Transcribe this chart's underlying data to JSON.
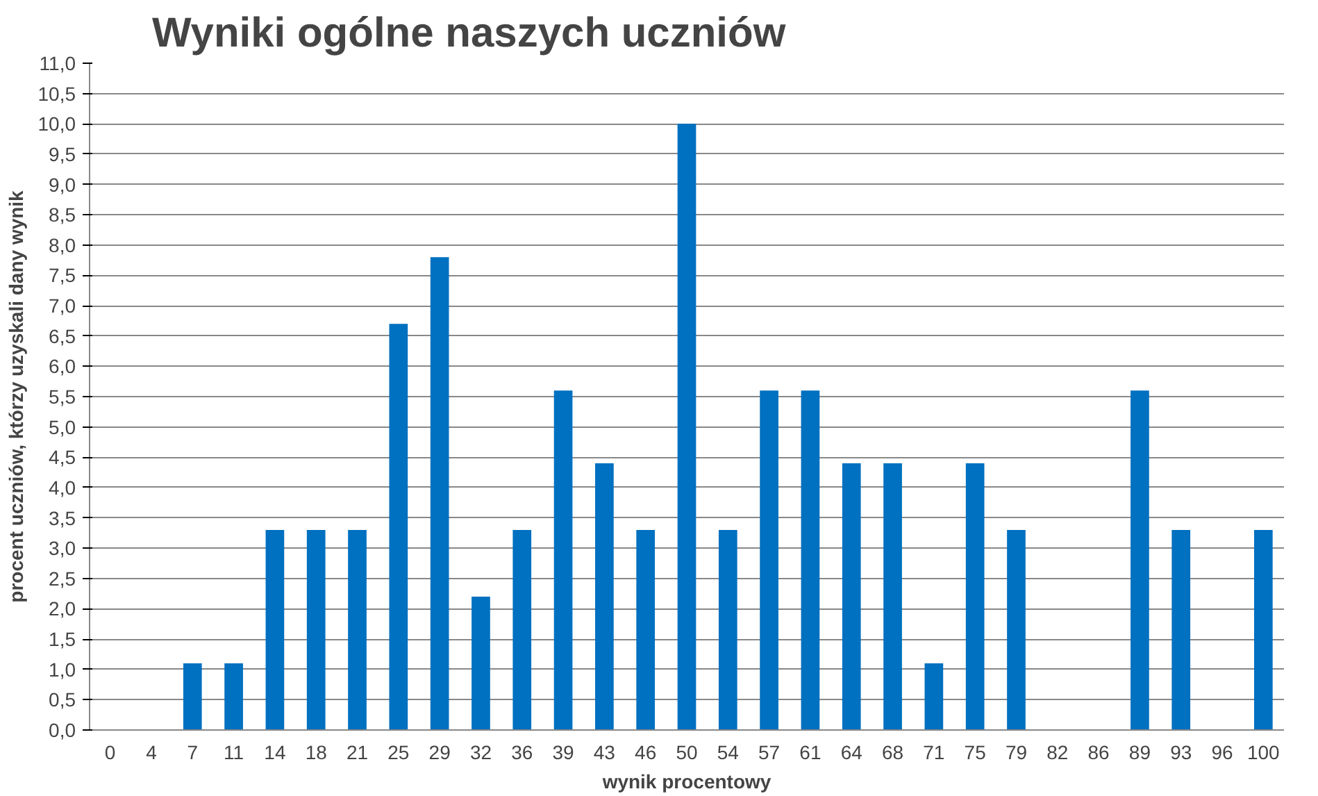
{
  "chart_data": {
    "type": "bar",
    "title": "Wyniki ogólne naszych uczniów",
    "xlabel": "wynik procentowy",
    "ylabel": "procent uczniów, którzy uzyskali dany wynik",
    "categories": [
      "0",
      "4",
      "7",
      "11",
      "14",
      "18",
      "21",
      "25",
      "29",
      "32",
      "36",
      "39",
      "43",
      "46",
      "50",
      "54",
      "57",
      "61",
      "64",
      "68",
      "71",
      "75",
      "79",
      "82",
      "86",
      "89",
      "93",
      "96",
      "100"
    ],
    "values": [
      0,
      0,
      1.1,
      1.1,
      3.3,
      3.3,
      3.3,
      6.7,
      7.8,
      2.2,
      3.3,
      5.6,
      4.4,
      3.3,
      10.0,
      3.3,
      5.6,
      5.6,
      4.4,
      4.4,
      1.1,
      4.4,
      3.3,
      0,
      0,
      5.6,
      3.3,
      0,
      3.3
    ],
    "color": "#0070c0",
    "ylim": [
      0,
      11
    ],
    "yticks": [
      {
        "value": 0,
        "label": "0,0"
      },
      {
        "value": 0.5,
        "label": "0,5"
      },
      {
        "value": 1,
        "label": "1,0"
      },
      {
        "value": 1.5,
        "label": "1,5"
      },
      {
        "value": 2,
        "label": "2,0"
      },
      {
        "value": 2.5,
        "label": "2,5"
      },
      {
        "value": 3,
        "label": "3,0"
      },
      {
        "value": 3.5,
        "label": "3,5"
      },
      {
        "value": 4,
        "label": "4,0"
      },
      {
        "value": 4.5,
        "label": "4,5"
      },
      {
        "value": 5,
        "label": "5,0"
      },
      {
        "value": 5.5,
        "label": "5,5"
      },
      {
        "value": 6,
        "label": "6,0"
      },
      {
        "value": 6.5,
        "label": "6,5"
      },
      {
        "value": 7,
        "label": "7,0"
      },
      {
        "value": 7.5,
        "label": "7,5"
      },
      {
        "value": 8,
        "label": "8,0"
      },
      {
        "value": 8.5,
        "label": "8,5"
      },
      {
        "value": 9,
        "label": "9,0"
      },
      {
        "value": 9.5,
        "label": "9,5"
      },
      {
        "value": 10,
        "label": "10,0"
      },
      {
        "value": 10.5,
        "label": "10,5"
      },
      {
        "value": 11,
        "label": "11,0"
      }
    ],
    "grid": "y",
    "legend": false
  }
}
